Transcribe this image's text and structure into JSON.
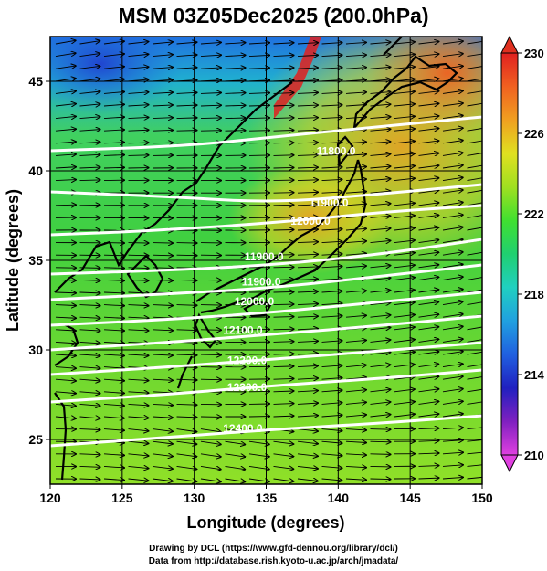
{
  "title": "MSM 03Z05Dec2025 (200.0hPa)",
  "map": {
    "x_axis": {
      "label": "Longitude (degrees)",
      "range": [
        120,
        150
      ],
      "ticks": [
        "120",
        "125",
        "130",
        "135",
        "140",
        "145",
        "150"
      ]
    },
    "y_axis": {
      "label": "Latitude  (degrees)",
      "range": [
        22.5,
        47.5
      ],
      "ticks": [
        "25",
        "30",
        "35",
        "40",
        "45"
      ]
    },
    "grid": true,
    "contours": [
      {
        "label": "11800.0",
        "lon": 138.5,
        "lat": 40.9
      },
      {
        "label": "11900.0",
        "lon": 138.0,
        "lat": 38.0
      },
      {
        "label": "12000.0",
        "lon": 136.7,
        "lat": 37.0
      },
      {
        "label": "11900.0",
        "lon": 133.5,
        "lat": 35.0
      },
      {
        "label": "11900.0",
        "lon": 133.3,
        "lat": 33.6
      },
      {
        "label": "12000.0",
        "lon": 132.8,
        "lat": 32.5
      },
      {
        "label": "12100.0",
        "lon": 132.0,
        "lat": 30.9
      },
      {
        "label": "12200.0",
        "lon": 132.3,
        "lat": 29.2
      },
      {
        "label": "12300.0",
        "lon": 132.3,
        "lat": 27.7
      },
      {
        "label": "12400.0",
        "lon": 132.0,
        "lat": 25.4
      }
    ]
  },
  "colorbar": {
    "min": 210,
    "max": 230,
    "ticks": [
      "210",
      "214",
      "218",
      "222",
      "226",
      "230"
    ],
    "colors": [
      "#e040e0",
      "#8020c0",
      "#2020c0",
      "#2060e0",
      "#20a0e0",
      "#20d0c0",
      "#20d070",
      "#40e030",
      "#a0e020",
      "#e0e020",
      "#f0a020",
      "#f06020",
      "#e02020"
    ]
  },
  "credits": {
    "line1": "Drawing by DCL (https://www.gfd-dennou.org/library/dcl/)",
    "line2": "Data from http://database.rish.kyoto-u.ac.jp/arch/jmadata/"
  }
}
